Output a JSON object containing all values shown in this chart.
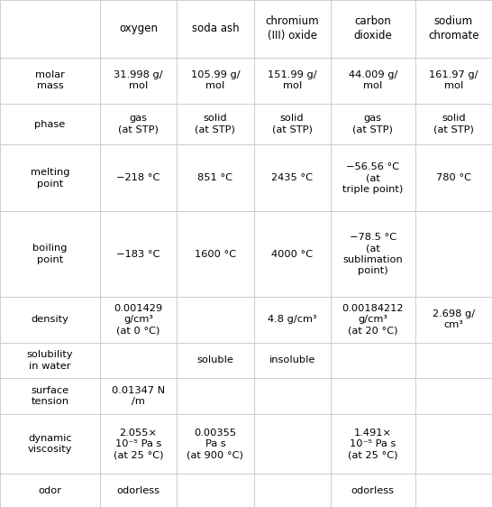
{
  "columns": [
    "",
    "oxygen",
    "soda ash",
    "chromium\n(III) oxide",
    "carbon\ndioxide",
    "sodium\nchromate"
  ],
  "rows": [
    {
      "label": "molar\nmass",
      "values": [
        "31.998 g/\nmol",
        "105.99 g/\nmol",
        "151.99 g/\nmol",
        "44.009 g/\nmol",
        "161.97 g/\nmol"
      ]
    },
    {
      "label": "phase",
      "values": [
        "gas\n(at STP)",
        "solid\n(at STP)",
        "solid\n(at STP)",
        "gas\n(at STP)",
        "solid\n(at STP)"
      ]
    },
    {
      "label": "melting\npoint",
      "values": [
        "−218 °C",
        "851 °C",
        "2435 °C",
        "−56.56 °C\n(at\ntriple point)",
        "780 °C"
      ]
    },
    {
      "label": "boiling\npoint",
      "values": [
        "−183 °C",
        "1600 °C",
        "4000 °C",
        "−78.5 °C\n(at\nsublimation\npoint)",
        ""
      ]
    },
    {
      "label": "density",
      "values": [
        "0.001429\ng/cm³\n(at 0 °C)",
        "",
        "4.8 g/cm³",
        "0.00184212\ng/cm³\n(at 20 °C)",
        "2.698 g/\ncm³"
      ]
    },
    {
      "label": "solubility\nin water",
      "values": [
        "",
        "soluble",
        "insoluble",
        "",
        ""
      ]
    },
    {
      "label": "surface\ntension",
      "values": [
        "0.01347 N\n/m",
        "",
        "",
        "",
        ""
      ]
    },
    {
      "label": "dynamic\nviscosity",
      "values": [
        "2.055×\n10⁻⁵ Pa s\n(at 25 °C)",
        "0.00355\nPa s\n(at 900 °C)",
        "",
        "1.491×\n10⁻⁵ Pa s\n(at 25 °C)",
        ""
      ]
    },
    {
      "label": "odor",
      "values": [
        "odorless",
        "",
        "",
        "odorless",
        ""
      ]
    }
  ],
  "border_color": "#c8c8c8",
  "cell_bg": "#ffffff",
  "text_color": "#000000",
  "header_fontsize": 8.5,
  "cell_fontsize": 8.2,
  "figsize": [
    5.46,
    5.62
  ],
  "dpi": 100,
  "col_widths_rel": [
    1.3,
    1.0,
    1.0,
    1.0,
    1.1,
    1.0
  ],
  "row_heights_rel": [
    1.25,
    1.0,
    0.9,
    1.45,
    1.85,
    1.0,
    0.78,
    0.78,
    1.3,
    0.72
  ]
}
